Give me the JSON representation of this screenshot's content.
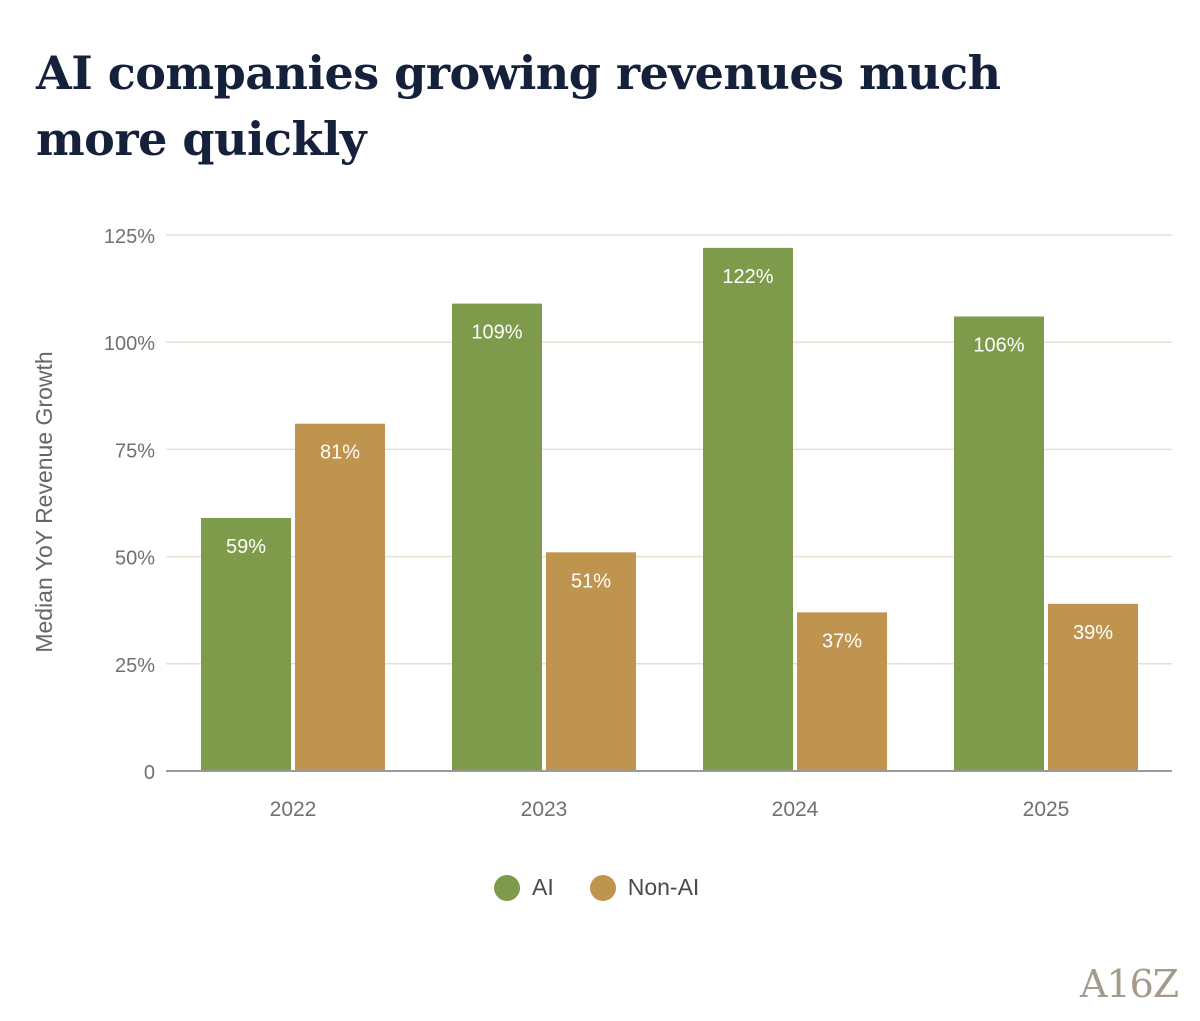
{
  "title": "AI companies growing revenues much more quickly",
  "logo_text": "A16Z",
  "colors": {
    "ai": "#7e9b4c",
    "non_ai": "#bf944f",
    "grid": "#e6e0d3",
    "axis": "#9a9a9a",
    "tick_text": "#707070",
    "bar_label": "#ffffff"
  },
  "chart_data": {
    "type": "bar",
    "title": "AI companies growing revenues much more quickly",
    "xlabel": "",
    "ylabel": "Median YoY Revenue Growth",
    "categories": [
      "2022",
      "2023",
      "2024",
      "2025"
    ],
    "series": [
      {
        "name": "AI",
        "color": "#7e9b4c",
        "values": [
          59,
          109,
          122,
          106
        ],
        "labels": [
          "59%",
          "109%",
          "122%",
          "106%"
        ]
      },
      {
        "name": "Non-AI",
        "color": "#bf944f",
        "values": [
          81,
          51,
          37,
          39
        ],
        "labels": [
          "81%",
          "51%",
          "37%",
          "39%"
        ]
      }
    ],
    "ylim": [
      0,
      125
    ],
    "yticks": [
      0,
      25,
      50,
      75,
      100,
      125
    ],
    "ytick_labels": [
      "0",
      "25%",
      "50%",
      "75%",
      "100%",
      "125%"
    ],
    "grid": true,
    "legend": "bottom-center"
  }
}
